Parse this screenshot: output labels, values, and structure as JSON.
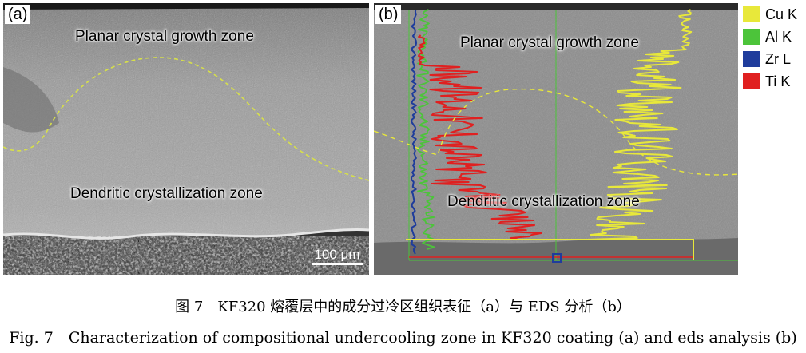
{
  "panel_a": {
    "tag": "(a)",
    "zone_top": "Planar crystal growth zone",
    "zone_bottom": "Dendritic crystallization zone",
    "scale_bar": "100 μm"
  },
  "panel_b": {
    "tag": "(b)",
    "zone_top": "Planar crystal growth zone",
    "zone_bottom": "Dendritic crystallization zone"
  },
  "legend": [
    {
      "label": "Cu K",
      "color": "#e8e83a"
    },
    {
      "label": "Al K",
      "color": "#4cc43a"
    },
    {
      "label": "Zr L",
      "color": "#1f3c9c"
    },
    {
      "label": "Ti K",
      "color": "#e02020"
    }
  ],
  "caption_zh": "图 7　KF320 熔覆层中的成分过冷区组织表征（a）与 EDS 分析（b）",
  "caption_en": "Fig. 7　Characterization of compositional undercooling zone in KF320 coating (a) and eds analysis (b)"
}
